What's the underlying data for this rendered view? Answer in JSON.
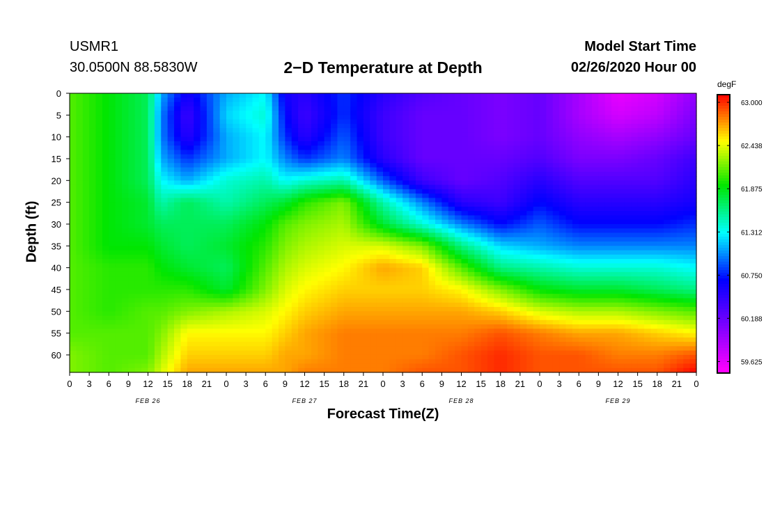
{
  "header": {
    "station": "USMR1",
    "coords": "30.0500N 88.5830W",
    "title": "2−D Temperature at Depth",
    "start_label": "Model Start Time",
    "start_time": "02/26/2020 Hour 00"
  },
  "chart_data": {
    "type": "heatmap",
    "title": "2−D Temperature at Depth",
    "xlabel": "Forecast Time(Z)",
    "ylabel": "Depth (ft)",
    "colorbar_unit": "degF",
    "x_range_hours": [
      0,
      96
    ],
    "y_range_ft": [
      0,
      64
    ],
    "x_tick_labels": [
      "0",
      "3",
      "6",
      "9",
      "12",
      "15",
      "18",
      "21",
      "0",
      "3",
      "6",
      "9",
      "12",
      "15",
      "18",
      "21",
      "0",
      "3",
      "6",
      "9",
      "12",
      "15",
      "18",
      "21",
      "0",
      "3",
      "6",
      "9",
      "12",
      "15",
      "18",
      "21",
      "0"
    ],
    "date_labels": [
      {
        "text": "FEB 26",
        "hour": 12
      },
      {
        "text": "FEB 27",
        "hour": 36
      },
      {
        "text": "FEB 28",
        "hour": 60
      },
      {
        "text": "FEB 29",
        "hour": 84
      }
    ],
    "y_ticks": [
      0,
      5,
      10,
      15,
      20,
      25,
      30,
      35,
      40,
      45,
      50,
      55,
      60
    ],
    "colorbar_ticks": [
      "63.000",
      "62.438",
      "61.875",
      "61.312",
      "60.750",
      "60.188",
      "59.625"
    ],
    "color_min": 59.5,
    "color_max": 63.1,
    "depth_grid_ft": [
      0,
      5,
      10,
      15,
      20,
      25,
      30,
      35,
      40,
      45,
      50,
      55,
      60,
      64
    ],
    "time_grid_hours": [
      0,
      6,
      12,
      14,
      18,
      24,
      30,
      33,
      36,
      42,
      48,
      54,
      60,
      66,
      72,
      78,
      84,
      90,
      96
    ],
    "temperature_grid": [
      [
        62.1,
        61.9,
        61.7,
        61.1,
        60.6,
        61.1,
        61.3,
        60.6,
        60.5,
        60.8,
        60.5,
        60.3,
        60.2,
        60.1,
        60.2,
        59.9,
        59.6,
        59.7,
        60.0
      ],
      [
        62.1,
        61.9,
        61.7,
        61.0,
        60.4,
        61.2,
        61.4,
        60.7,
        60.4,
        60.8,
        60.4,
        60.2,
        60.2,
        60.1,
        60.2,
        59.9,
        59.7,
        59.8,
        60.1
      ],
      [
        62.1,
        61.9,
        61.7,
        61.0,
        60.5,
        61.1,
        61.3,
        60.8,
        60.5,
        60.9,
        60.4,
        60.2,
        60.2,
        60.1,
        60.2,
        60.0,
        59.9,
        60.0,
        60.2
      ],
      [
        62.1,
        61.9,
        61.7,
        61.1,
        60.8,
        61.1,
        61.3,
        61.0,
        60.8,
        61.0,
        60.5,
        60.2,
        60.2,
        60.2,
        60.3,
        60.1,
        60.1,
        60.2,
        60.4
      ],
      [
        62.1,
        61.9,
        61.7,
        61.3,
        61.1,
        61.4,
        61.5,
        61.3,
        61.4,
        61.5,
        60.9,
        60.4,
        60.2,
        60.3,
        60.5,
        60.3,
        60.3,
        60.3,
        60.5
      ],
      [
        62.1,
        61.9,
        61.8,
        61.5,
        61.7,
        61.5,
        61.7,
        61.8,
        62.0,
        62.2,
        61.5,
        61.0,
        60.5,
        60.4,
        60.7,
        60.5,
        60.5,
        60.5,
        60.6
      ],
      [
        62.1,
        61.9,
        61.8,
        61.7,
        61.7,
        61.7,
        61.9,
        62.1,
        62.2,
        62.3,
        61.8,
        61.4,
        61.0,
        60.7,
        60.9,
        60.7,
        60.7,
        60.7,
        60.8
      ],
      [
        62.1,
        61.9,
        61.9,
        61.8,
        61.7,
        61.8,
        62.0,
        62.2,
        62.3,
        62.4,
        62.4,
        62.2,
        61.6,
        61.2,
        61.1,
        61.0,
        61.0,
        61.0,
        61.0
      ],
      [
        62.1,
        62.0,
        62.0,
        61.9,
        61.8,
        61.7,
        62.1,
        62.3,
        62.4,
        62.5,
        62.7,
        62.6,
        62.1,
        61.6,
        61.5,
        61.4,
        61.4,
        61.4,
        61.3
      ],
      [
        62.1,
        62.0,
        62.0,
        62.0,
        62.0,
        61.8,
        62.2,
        62.4,
        62.5,
        62.6,
        62.6,
        62.6,
        62.5,
        62.2,
        61.9,
        61.8,
        61.8,
        61.7,
        61.6
      ],
      [
        62.1,
        62.0,
        62.1,
        62.1,
        62.2,
        62.3,
        62.4,
        62.5,
        62.6,
        62.7,
        62.7,
        62.7,
        62.7,
        62.6,
        62.4,
        62.3,
        62.3,
        62.2,
        62.1
      ],
      [
        62.1,
        62.1,
        62.1,
        62.2,
        62.5,
        62.5,
        62.5,
        62.6,
        62.7,
        62.8,
        62.8,
        62.8,
        62.8,
        62.9,
        62.8,
        62.7,
        62.7,
        62.6,
        62.5
      ],
      [
        62.2,
        62.1,
        62.1,
        62.3,
        62.6,
        62.6,
        62.6,
        62.7,
        62.7,
        62.8,
        62.8,
        62.8,
        62.9,
        63.0,
        62.9,
        62.9,
        62.8,
        62.8,
        62.9
      ],
      [
        62.2,
        62.1,
        62.2,
        62.4,
        62.7,
        62.7,
        62.7,
        62.7,
        62.8,
        62.8,
        62.8,
        62.9,
        62.9,
        63.0,
        62.9,
        62.9,
        62.9,
        62.9,
        63.1
      ]
    ]
  }
}
